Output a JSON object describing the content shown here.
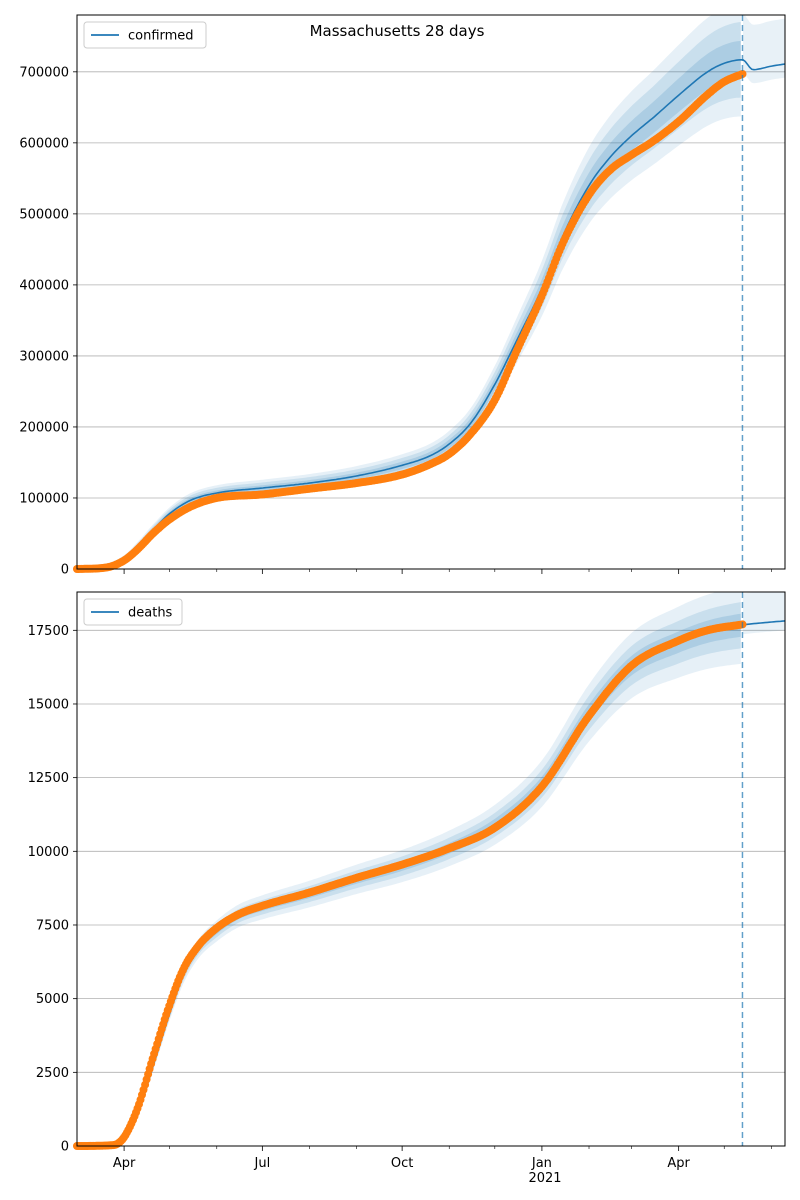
{
  "title": "Massachusetts 28 days",
  "colors": {
    "model": "#1f77b4",
    "observed": "#ff7f0e",
    "band": "#1f77b4",
    "grid": "#b0b0b0",
    "marker_line": "#1f77b4"
  },
  "x_axis": {
    "range": [
      "2020-03-01",
      "2021-06-10"
    ],
    "tick_labels": [
      "Apr",
      "Jul",
      "Oct",
      "Jan",
      "Apr"
    ],
    "tick_dates": [
      "2020-04-01",
      "2020-07-01",
      "2020-10-01",
      "2021-01-01",
      "2021-04-01"
    ],
    "minor_dates": [
      "2020-05-01",
      "2020-06-01",
      "2020-08-01",
      "2020-09-01",
      "2020-11-01",
      "2020-12-01",
      "2021-02-01",
      "2021-03-01",
      "2021-05-01",
      "2021-06-01"
    ],
    "year_label": "2021",
    "forecast_start": "2021-05-13"
  },
  "chart_data": [
    {
      "type": "line",
      "legend": "confirmed",
      "legend_position": "top-left",
      "grid": true,
      "ylim": [
        0,
        780000
      ],
      "yticks": [
        "0",
        "100000",
        "200000",
        "300000",
        "400000",
        "500000",
        "600000",
        "700000"
      ],
      "ytick_values": [
        0,
        100000,
        200000,
        300000,
        400000,
        500000,
        600000,
        700000
      ],
      "model": {
        "x": [
          "2020-03-01",
          "2020-03-20",
          "2020-04-01",
          "2020-04-10",
          "2020-04-20",
          "2020-05-01",
          "2020-05-15",
          "2020-06-01",
          "2020-07-01",
          "2020-08-01",
          "2020-09-01",
          "2020-10-01",
          "2020-10-20",
          "2020-11-01",
          "2020-11-15",
          "2020-12-01",
          "2020-12-15",
          "2021-01-01",
          "2021-01-15",
          "2021-02-01",
          "2021-02-15",
          "2021-03-01",
          "2021-03-15",
          "2021-04-01",
          "2021-04-20",
          "2021-05-01",
          "2021-05-13",
          "2021-05-20",
          "2021-06-01",
          "2021-06-10"
        ],
        "y": [
          0,
          3000,
          14000,
          32000,
          55000,
          78000,
          97000,
          107000,
          114000,
          121000,
          131000,
          146000,
          160000,
          176000,
          205000,
          260000,
          320000,
          395000,
          470000,
          540000,
          580000,
          610000,
          635000,
          667000,
          700000,
          712000,
          717000,
          703000,
          708000,
          711000
        ]
      },
      "observed": {
        "x": [
          "2020-03-01",
          "2020-03-20",
          "2020-04-01",
          "2020-04-10",
          "2020-04-20",
          "2020-05-01",
          "2020-05-15",
          "2020-06-01",
          "2020-07-01",
          "2020-08-01",
          "2020-09-01",
          "2020-10-01",
          "2020-10-20",
          "2020-11-01",
          "2020-11-15",
          "2020-12-01",
          "2020-12-15",
          "2021-01-01",
          "2021-01-15",
          "2021-02-01",
          "2021-02-15",
          "2021-03-01",
          "2021-03-15",
          "2021-04-01",
          "2021-04-20",
          "2021-05-01",
          "2021-05-13"
        ],
        "y": [
          0,
          2000,
          12000,
          28000,
          50000,
          70000,
          88000,
          100000,
          105000,
          113000,
          121000,
          133000,
          148000,
          162000,
          190000,
          238000,
          305000,
          385000,
          460000,
          527000,
          562000,
          583000,
          602000,
          630000,
          668000,
          686000,
          697000
        ]
      },
      "band_widths": [
        0.025,
        0.05,
        0.075
      ]
    },
    {
      "type": "line",
      "legend": "deaths",
      "legend_position": "top-left",
      "grid": true,
      "ylim": [
        0,
        18800
      ],
      "yticks": [
        "0",
        "2500",
        "5000",
        "7500",
        "10000",
        "12500",
        "15000",
        "17500"
      ],
      "ytick_values": [
        0,
        2500,
        5000,
        7500,
        10000,
        12500,
        15000,
        17500
      ],
      "model": {
        "x": [
          "2020-03-01",
          "2020-03-25",
          "2020-04-01",
          "2020-04-10",
          "2020-04-20",
          "2020-05-01",
          "2020-05-10",
          "2020-05-20",
          "2020-06-01",
          "2020-06-15",
          "2020-07-01",
          "2020-08-01",
          "2020-09-01",
          "2020-10-01",
          "2020-11-01",
          "2020-12-01",
          "2021-01-01",
          "2021-02-01",
          "2021-03-01",
          "2021-04-01",
          "2021-04-20",
          "2021-05-13",
          "2021-06-01",
          "2021-06-10"
        ],
        "y": [
          0,
          20,
          250,
          1100,
          2700,
          4500,
          5800,
          6700,
          7300,
          7800,
          8100,
          8550,
          9050,
          9500,
          10100,
          10900,
          12300,
          14700,
          16300,
          17100,
          17450,
          17680,
          17780,
          17820
        ]
      },
      "observed": {
        "x": [
          "2020-03-01",
          "2020-03-25",
          "2020-04-01",
          "2020-04-10",
          "2020-04-20",
          "2020-05-01",
          "2020-05-10",
          "2020-05-20",
          "2020-06-01",
          "2020-06-15",
          "2020-07-01",
          "2020-08-01",
          "2020-09-01",
          "2020-10-01",
          "2020-11-01",
          "2020-12-01",
          "2021-01-01",
          "2021-02-01",
          "2021-03-01",
          "2021-04-01",
          "2021-04-20",
          "2021-05-13"
        ],
        "y": [
          0,
          30,
          300,
          1300,
          3000,
          4800,
          6000,
          6800,
          7400,
          7850,
          8150,
          8600,
          9100,
          9550,
          10100,
          10800,
          12200,
          14600,
          16300,
          17150,
          17500,
          17700
        ]
      },
      "band_widths": [
        0.015,
        0.03,
        0.05
      ]
    }
  ]
}
